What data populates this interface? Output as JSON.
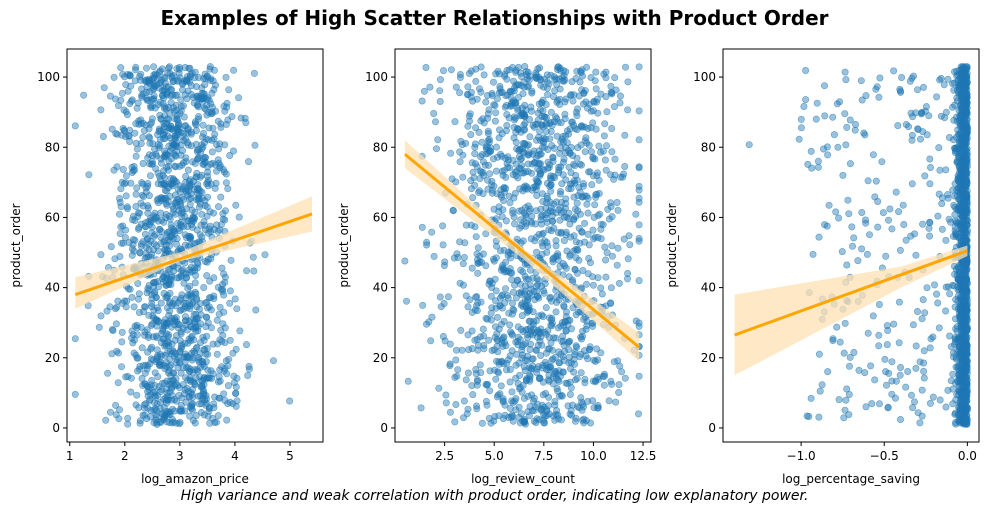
{
  "title": "Examples of High Scatter Relationships with Product Order",
  "caption": "High variance and weak correlation with product order, indicating low explanatory power.",
  "colors": {
    "points": "#1f77b4",
    "regression": "#ffa500",
    "confidence_band": "#ffe0b2"
  },
  "chart_data": [
    {
      "type": "scatter",
      "xlabel": "log_amazon_price",
      "ylabel": "product_order",
      "xlim": [
        0.95,
        5.6
      ],
      "ylim": [
        -4,
        108
      ],
      "xticks": [
        1,
        2,
        3,
        4,
        5
      ],
      "xticklabels": [
        "1",
        "2",
        "3",
        "4",
        "5"
      ],
      "yticks": [
        0,
        20,
        40,
        60,
        80,
        100
      ],
      "yticklabels": [
        "0",
        "20",
        "40",
        "60",
        "80",
        "100"
      ],
      "x_distribution": {
        "center": 2.9,
        "spread": 0.55,
        "min": 1.1,
        "max": 5.4
      },
      "y_range": [
        1,
        103
      ],
      "n_points": 1500,
      "regression": {
        "x": [
          1.1,
          5.4
        ],
        "y": [
          38,
          61
        ]
      },
      "confidence_band": {
        "x": [
          1.1,
          3.0,
          5.4
        ],
        "upper": [
          43,
          50,
          66
        ],
        "lower": [
          34,
          47.5,
          56
        ]
      },
      "grid": false
    },
    {
      "type": "scatter",
      "xlabel": "log_review_count",
      "ylabel": "product_order",
      "xlim": [
        0.0,
        12.9
      ],
      "ylim": [
        -4,
        108
      ],
      "xticks": [
        2.5,
        5.0,
        7.5,
        10.0,
        12.5
      ],
      "xticklabels": [
        "2.5",
        "5.0",
        "7.5",
        "10.0",
        "12.5"
      ],
      "yticks": [
        0,
        20,
        40,
        60,
        80,
        100
      ],
      "yticklabels": [
        "0",
        "20",
        "40",
        "60",
        "80",
        "100"
      ],
      "x_distribution": {
        "center": 7.2,
        "spread": 2.2,
        "min": 0.5,
        "max": 12.3
      },
      "y_range": [
        1,
        103
      ],
      "n_points": 1500,
      "regression": {
        "x": [
          0.5,
          12.3
        ],
        "y": [
          78,
          23
        ]
      },
      "confidence_band": {
        "x": [
          0.5,
          6.5,
          12.3
        ],
        "upper": [
          82,
          51,
          27
        ],
        "lower": [
          74,
          48,
          19
        ]
      },
      "grid": false
    },
    {
      "type": "scatter",
      "xlabel": "log_percentage_saving",
      "ylabel": "product_order",
      "xlim": [
        -1.47,
        0.07
      ],
      "ylim": [
        -4,
        108
      ],
      "xticks": [
        -1.0,
        -0.5,
        0.0
      ],
      "xticklabels": [
        "−1.0",
        "−0.5",
        "0.0"
      ],
      "yticks": [
        0,
        20,
        40,
        60,
        80,
        100
      ],
      "yticklabels": [
        "0",
        "20",
        "40",
        "60",
        "80",
        "100"
      ],
      "x_distribution": {
        "center": 0.0,
        "spread": 0.25,
        "min": -1.4,
        "max": 0.0
      },
      "y_range": [
        1,
        103
      ],
      "n_points": 1500,
      "regression": {
        "x": [
          -1.4,
          0.0
        ],
        "y": [
          26.5,
          50.5
        ]
      },
      "confidence_band": {
        "x": [
          -1.4,
          -0.4,
          0.0
        ],
        "upper": [
          38,
          46,
          52
        ],
        "lower": [
          15,
          40,
          49
        ]
      },
      "grid": false
    }
  ]
}
